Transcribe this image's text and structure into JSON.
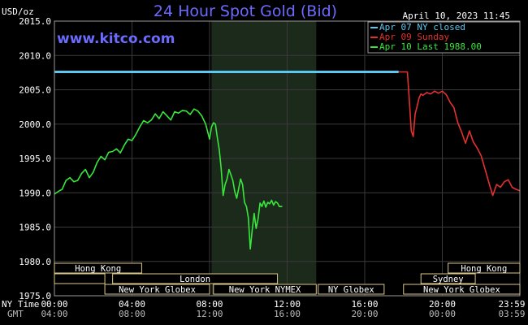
{
  "chart_data": {
    "type": "line",
    "title": "24 Hour Spot Gold (Bid)",
    "ylabel": "USD/oz",
    "watermark": "www.kitco.com",
    "timestamp": "April 10, 2023 11:45",
    "ylim": [
      1975.0,
      2015.0
    ],
    "y_ticks": [
      "2015.0",
      "2010.0",
      "2005.0",
      "2000.0",
      "1995.0",
      "1990.0",
      "1985.0",
      "1980.0",
      "1975.0"
    ],
    "x_ticks_ny": [
      "00:00",
      "04:00",
      "08:00",
      "12:00",
      "16:00",
      "20:00",
      "23:59"
    ],
    "x_ticks_gmt": [
      "04:00",
      "08:00",
      "12:00",
      "16:00",
      "20:00",
      "00:00",
      "03:59"
    ],
    "x_label_ny": "NY Time",
    "x_label_gmt": "GMT",
    "legend": [
      {
        "label": "Apr 07 NY closed",
        "color": "#5bc8f0"
      },
      {
        "label": "Apr 09 Sunday",
        "color": "#e53030"
      },
      {
        "label": "Apr 10 Last 1988.00",
        "color": "#37e83a"
      }
    ],
    "grid": true,
    "series": [
      {
        "name": "Apr 07 NY closed",
        "color": "#5bc8f0",
        "x": [
          0.0,
          17.75
        ],
        "y": [
          2007.6,
          2007.6
        ]
      },
      {
        "name": "Apr 09 Sunday",
        "color": "#e53030",
        "x": [
          17.75,
          18.2,
          18.3,
          18.4,
          18.5,
          18.6,
          18.7,
          18.8,
          18.9,
          19.0,
          19.2,
          19.4,
          19.6,
          19.8,
          20.0,
          20.2,
          20.4,
          20.6,
          20.8,
          21.0,
          21.2,
          21.4,
          21.6,
          21.8,
          22.0,
          22.2,
          22.4,
          22.6,
          22.8,
          23.0,
          23.2,
          23.4,
          23.6,
          23.8,
          23.99
        ],
        "y": [
          2007.6,
          2007.6,
          2003.5,
          1999.0,
          1998.2,
          2001.5,
          2002.6,
          2003.8,
          2004.4,
          2004.2,
          2004.6,
          2004.4,
          2004.8,
          2004.5,
          2004.8,
          2004.3,
          2003.2,
          2002.4,
          2000.2,
          1998.8,
          1997.2,
          1999.0,
          1997.4,
          1996.5,
          1995.4,
          1993.5,
          1991.5,
          1989.6,
          1991.2,
          1990.8,
          1991.6,
          1991.9,
          1990.8,
          1990.5,
          1990.3
        ]
      },
      {
        "name": "Apr 10 Last 1988.00",
        "color": "#37e83a",
        "x": [
          0.0,
          0.2,
          0.4,
          0.6,
          0.8,
          1.0,
          1.2,
          1.4,
          1.6,
          1.8,
          2.0,
          2.2,
          2.4,
          2.6,
          2.8,
          3.0,
          3.2,
          3.4,
          3.6,
          3.8,
          4.0,
          4.2,
          4.4,
          4.6,
          4.8,
          5.0,
          5.2,
          5.4,
          5.6,
          5.8,
          6.0,
          6.2,
          6.4,
          6.6,
          6.8,
          7.0,
          7.2,
          7.4,
          7.6,
          7.8,
          8.0,
          8.1,
          8.2,
          8.3,
          8.4,
          8.5,
          8.6,
          8.7,
          8.8,
          8.9,
          9.0,
          9.1,
          9.2,
          9.3,
          9.4,
          9.5,
          9.6,
          9.7,
          9.8,
          9.9,
          10.0,
          10.1,
          10.2,
          10.3,
          10.4,
          10.5,
          10.6,
          10.7,
          10.8,
          10.9,
          11.0,
          11.1,
          11.2,
          11.3,
          11.4,
          11.5,
          11.6,
          11.75
        ],
        "y": [
          1989.8,
          1990.2,
          1990.5,
          1991.8,
          1992.2,
          1991.6,
          1991.8,
          1992.8,
          1993.4,
          1992.2,
          1993.0,
          1994.4,
          1995.3,
          1994.8,
          1995.9,
          1996.0,
          1996.4,
          1995.8,
          1996.9,
          1997.8,
          1997.6,
          1998.5,
          1999.6,
          2000.5,
          2000.2,
          2000.6,
          2001.5,
          2000.8,
          2001.8,
          2001.2,
          2000.6,
          2001.8,
          2001.6,
          2002.0,
          2001.9,
          2001.4,
          2002.2,
          2001.9,
          2001.2,
          2000.0,
          1997.8,
          1999.6,
          2000.2,
          2000.0,
          1998.0,
          1996.3,
          1993.5,
          1989.6,
          1991.2,
          1992.0,
          1993.4,
          1992.6,
          1991.8,
          1990.2,
          1989.2,
          1990.6,
          1992.0,
          1991.2,
          1988.6,
          1988.0,
          1986.3,
          1981.8,
          1984.6,
          1987.0,
          1984.8,
          1986.2,
          1988.5,
          1988.0,
          1988.8,
          1987.9,
          1988.6,
          1988.4,
          1988.9,
          1988.2,
          1988.7,
          1988.5,
          1988.0,
          1988.0
        ]
      }
    ],
    "market_bars": [
      {
        "label": "Hong Kong",
        "row": 1,
        "x0": 0.0,
        "x1": 4.5
      },
      {
        "label": "",
        "row": 2,
        "x0": 0.0,
        "x1": 2.6
      },
      {
        "label": "London",
        "row": 2,
        "x0": 3.0,
        "x1": 11.5
      },
      {
        "label": "New York Globex",
        "row": 3,
        "x0": 2.6,
        "x1": 8.0
      },
      {
        "label": "New York NYMEX",
        "row": 3,
        "x0": 8.2,
        "x1": 13.5
      },
      {
        "label": "NY Globex",
        "row": 3,
        "x0": 13.6,
        "x1": 17.0
      },
      {
        "label": "Hong Kong",
        "row": 1,
        "x0": 20.3,
        "x1": 24.0
      },
      {
        "label": "Sydney",
        "row": 2,
        "x0": 18.9,
        "x1": 21.7
      },
      {
        "label": "New York Globex",
        "row": 3,
        "x0": 18.0,
        "x1": 24.0
      }
    ]
  }
}
